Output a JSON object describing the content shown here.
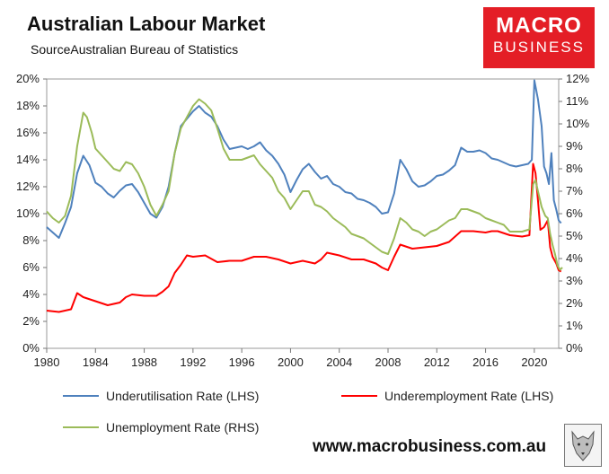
{
  "header": {
    "title": "Australian Labour Market",
    "source": "SourceAustralian Bureau of Statistics"
  },
  "logo": {
    "line1": "MACRO",
    "line2": "BUSINESS",
    "color": "#e41e26"
  },
  "footer": {
    "site": "www.macrobusiness.com.au"
  },
  "chart_data": {
    "type": "line",
    "title": "Australian Labour Market",
    "grid": false,
    "legend_placement": "bottom",
    "x_range": [
      1980,
      2022
    ],
    "x_ticks": [
      "1980",
      "1984",
      "1988",
      "1992",
      "1996",
      "2000",
      "2004",
      "2008",
      "2012",
      "2016",
      "2020"
    ],
    "y_left": {
      "range": [
        0,
        20
      ],
      "ticks": [
        "0%",
        "2%",
        "4%",
        "6%",
        "8%",
        "10%",
        "12%",
        "14%",
        "16%",
        "18%",
        "20%"
      ]
    },
    "y_right": {
      "range": [
        0,
        12
      ],
      "ticks": [
        "0%",
        "1%",
        "2%",
        "3%",
        "4%",
        "5%",
        "6%",
        "7%",
        "8%",
        "9%",
        "10%",
        "11%",
        "12%"
      ]
    },
    "series": [
      {
        "name": "Underutilisation Rate (LHS)",
        "axis": "left",
        "color": "#4f81bd",
        "points": [
          [
            1980,
            9.0
          ],
          [
            1980.5,
            8.6
          ],
          [
            1981,
            8.2
          ],
          [
            1981.5,
            9.3
          ],
          [
            1982,
            10.5
          ],
          [
            1982.5,
            13.0
          ],
          [
            1983,
            14.3
          ],
          [
            1983.5,
            13.6
          ],
          [
            1984,
            12.3
          ],
          [
            1984.5,
            12.0
          ],
          [
            1985,
            11.5
          ],
          [
            1985.5,
            11.2
          ],
          [
            1986,
            11.7
          ],
          [
            1986.5,
            12.1
          ],
          [
            1987,
            12.2
          ],
          [
            1987.5,
            11.6
          ],
          [
            1988,
            10.8
          ],
          [
            1988.5,
            10.0
          ],
          [
            1989,
            9.7
          ],
          [
            1989.5,
            10.5
          ],
          [
            1990,
            12.0
          ],
          [
            1990.5,
            14.5
          ],
          [
            1991,
            16.5
          ],
          [
            1992,
            17.6
          ],
          [
            1992.5,
            18.0
          ],
          [
            1993,
            17.5
          ],
          [
            1993.5,
            17.2
          ],
          [
            1994,
            16.5
          ],
          [
            1994.5,
            15.5
          ],
          [
            1995,
            14.8
          ],
          [
            1996,
            15.0
          ],
          [
            1996.5,
            14.8
          ],
          [
            1997,
            15.0
          ],
          [
            1997.5,
            15.3
          ],
          [
            1998,
            14.7
          ],
          [
            1998.5,
            14.3
          ],
          [
            1999,
            13.7
          ],
          [
            1999.5,
            12.9
          ],
          [
            2000,
            11.6
          ],
          [
            2000.5,
            12.5
          ],
          [
            2001,
            13.3
          ],
          [
            2001.5,
            13.7
          ],
          [
            2002,
            13.1
          ],
          [
            2002.5,
            12.6
          ],
          [
            2003,
            12.8
          ],
          [
            2003.5,
            12.2
          ],
          [
            2004,
            12.0
          ],
          [
            2004.5,
            11.6
          ],
          [
            2005,
            11.5
          ],
          [
            2005.5,
            11.1
          ],
          [
            2006,
            11.0
          ],
          [
            2006.5,
            10.8
          ],
          [
            2007,
            10.5
          ],
          [
            2007.5,
            10.0
          ],
          [
            2008,
            10.1
          ],
          [
            2008.5,
            11.5
          ],
          [
            2009,
            14.0
          ],
          [
            2009.5,
            13.3
          ],
          [
            2010,
            12.4
          ],
          [
            2010.5,
            12.0
          ],
          [
            2011,
            12.1
          ],
          [
            2011.5,
            12.4
          ],
          [
            2012,
            12.8
          ],
          [
            2012.5,
            12.9
          ],
          [
            2013,
            13.2
          ],
          [
            2013.5,
            13.6
          ],
          [
            2014,
            14.9
          ],
          [
            2014.5,
            14.6
          ],
          [
            2015,
            14.6
          ],
          [
            2015.5,
            14.7
          ],
          [
            2016,
            14.5
          ],
          [
            2016.5,
            14.1
          ],
          [
            2017,
            14.0
          ],
          [
            2017.5,
            13.8
          ],
          [
            2018,
            13.6
          ],
          [
            2018.5,
            13.5
          ],
          [
            2019,
            13.6
          ],
          [
            2019.5,
            13.7
          ],
          [
            2019.8,
            14.0
          ],
          [
            2020.0,
            19.9
          ],
          [
            2020.3,
            18.5
          ],
          [
            2020.6,
            16.5
          ],
          [
            2020.8,
            13.5
          ],
          [
            2021.0,
            13.0
          ],
          [
            2021.2,
            12.2
          ],
          [
            2021.4,
            14.5
          ],
          [
            2021.6,
            11.0
          ],
          [
            2021.8,
            10.3
          ],
          [
            2022.0,
            9.5
          ],
          [
            2022.2,
            9.3
          ]
        ]
      },
      {
        "name": "Underemployment Rate (LHS)",
        "axis": "left",
        "color": "#ff0000",
        "points": [
          [
            1980,
            2.8
          ],
          [
            1981,
            2.7
          ],
          [
            1982,
            2.9
          ],
          [
            1982.5,
            4.1
          ],
          [
            1983,
            3.8
          ],
          [
            1984,
            3.5
          ],
          [
            1985,
            3.2
          ],
          [
            1986,
            3.4
          ],
          [
            1986.5,
            3.8
          ],
          [
            1987,
            4.0
          ],
          [
            1988,
            3.9
          ],
          [
            1989,
            3.9
          ],
          [
            1989.5,
            4.2
          ],
          [
            1990,
            4.6
          ],
          [
            1990.5,
            5.6
          ],
          [
            1991,
            6.2
          ],
          [
            1991.5,
            6.9
          ],
          [
            1992,
            6.8
          ],
          [
            1993,
            6.9
          ],
          [
            1994,
            6.4
          ],
          [
            1995,
            6.5
          ],
          [
            1996,
            6.5
          ],
          [
            1997,
            6.8
          ],
          [
            1998,
            6.8
          ],
          [
            1999,
            6.6
          ],
          [
            2000,
            6.3
          ],
          [
            2001,
            6.5
          ],
          [
            2002,
            6.3
          ],
          [
            2002.5,
            6.6
          ],
          [
            2003,
            7.1
          ],
          [
            2004,
            6.9
          ],
          [
            2005,
            6.6
          ],
          [
            2006,
            6.6
          ],
          [
            2007,
            6.3
          ],
          [
            2007.5,
            6.0
          ],
          [
            2008,
            5.8
          ],
          [
            2008.5,
            6.8
          ],
          [
            2009,
            7.7
          ],
          [
            2010,
            7.4
          ],
          [
            2011,
            7.5
          ],
          [
            2012,
            7.6
          ],
          [
            2013,
            7.9
          ],
          [
            2014,
            8.7
          ],
          [
            2015,
            8.7
          ],
          [
            2016,
            8.6
          ],
          [
            2016.5,
            8.7
          ],
          [
            2017,
            8.7
          ],
          [
            2018,
            8.4
          ],
          [
            2019,
            8.3
          ],
          [
            2019.6,
            8.4
          ],
          [
            2019.9,
            13.7
          ],
          [
            2020.1,
            13.0
          ],
          [
            2020.3,
            11.0
          ],
          [
            2020.5,
            8.8
          ],
          [
            2020.8,
            9.0
          ],
          [
            2021.1,
            9.5
          ],
          [
            2021.3,
            7.5
          ],
          [
            2021.5,
            6.8
          ],
          [
            2021.8,
            6.3
          ],
          [
            2022.0,
            5.8
          ],
          [
            2022.2,
            5.7
          ]
        ]
      },
      {
        "name": "Unemployment Rate (RHS)",
        "axis": "right",
        "color": "#9bbb59",
        "points": [
          [
            1980,
            6.1
          ],
          [
            1980.5,
            5.8
          ],
          [
            1981,
            5.6
          ],
          [
            1981.5,
            5.9
          ],
          [
            1982,
            6.8
          ],
          [
            1982.5,
            9.0
          ],
          [
            1983,
            10.5
          ],
          [
            1983.3,
            10.3
          ],
          [
            1983.7,
            9.6
          ],
          [
            1984,
            8.9
          ],
          [
            1984.5,
            8.6
          ],
          [
            1985,
            8.3
          ],
          [
            1985.5,
            8.0
          ],
          [
            1986,
            7.9
          ],
          [
            1986.5,
            8.3
          ],
          [
            1987,
            8.2
          ],
          [
            1987.5,
            7.8
          ],
          [
            1988,
            7.2
          ],
          [
            1988.5,
            6.4
          ],
          [
            1989,
            5.9
          ],
          [
            1989.5,
            6.4
          ],
          [
            1990,
            7.0
          ],
          [
            1990.5,
            8.7
          ],
          [
            1991,
            9.8
          ],
          [
            1992,
            10.8
          ],
          [
            1992.5,
            11.1
          ],
          [
            1993,
            10.9
          ],
          [
            1993.5,
            10.6
          ],
          [
            1994,
            9.8
          ],
          [
            1994.5,
            8.9
          ],
          [
            1995,
            8.4
          ],
          [
            1996,
            8.4
          ],
          [
            1996.5,
            8.5
          ],
          [
            1997,
            8.6
          ],
          [
            1997.5,
            8.2
          ],
          [
            1998,
            7.9
          ],
          [
            1998.5,
            7.6
          ],
          [
            1999,
            7.0
          ],
          [
            1999.5,
            6.7
          ],
          [
            2000,
            6.2
          ],
          [
            2000.5,
            6.6
          ],
          [
            2001,
            7.0
          ],
          [
            2001.5,
            7.0
          ],
          [
            2002,
            6.4
          ],
          [
            2002.5,
            6.3
          ],
          [
            2003,
            6.1
          ],
          [
            2003.5,
            5.8
          ],
          [
            2004,
            5.6
          ],
          [
            2004.5,
            5.4
          ],
          [
            2005,
            5.1
          ],
          [
            2005.5,
            5.0
          ],
          [
            2006,
            4.9
          ],
          [
            2006.5,
            4.7
          ],
          [
            2007,
            4.5
          ],
          [
            2007.5,
            4.3
          ],
          [
            2008,
            4.2
          ],
          [
            2008.5,
            4.9
          ],
          [
            2009,
            5.8
          ],
          [
            2009.5,
            5.6
          ],
          [
            2010,
            5.3
          ],
          [
            2010.5,
            5.2
          ],
          [
            2011,
            5.0
          ],
          [
            2011.5,
            5.2
          ],
          [
            2012,
            5.3
          ],
          [
            2012.5,
            5.5
          ],
          [
            2013,
            5.7
          ],
          [
            2013.5,
            5.8
          ],
          [
            2014,
            6.2
          ],
          [
            2014.5,
            6.2
          ],
          [
            2015,
            6.1
          ],
          [
            2015.5,
            6.0
          ],
          [
            2016,
            5.8
          ],
          [
            2016.5,
            5.7
          ],
          [
            2017,
            5.6
          ],
          [
            2017.5,
            5.5
          ],
          [
            2018,
            5.2
          ],
          [
            2018.5,
            5.2
          ],
          [
            2019,
            5.2
          ],
          [
            2019.6,
            5.3
          ],
          [
            2019.9,
            7.3
          ],
          [
            2020.1,
            7.5
          ],
          [
            2020.3,
            7.0
          ],
          [
            2020.6,
            6.3
          ],
          [
            2020.9,
            5.9
          ],
          [
            2021.1,
            5.8
          ],
          [
            2021.3,
            5.1
          ],
          [
            2021.5,
            4.6
          ],
          [
            2021.7,
            4.2
          ],
          [
            2021.9,
            3.7
          ],
          [
            2022.1,
            3.5
          ],
          [
            2022.3,
            3.6
          ]
        ]
      }
    ]
  }
}
